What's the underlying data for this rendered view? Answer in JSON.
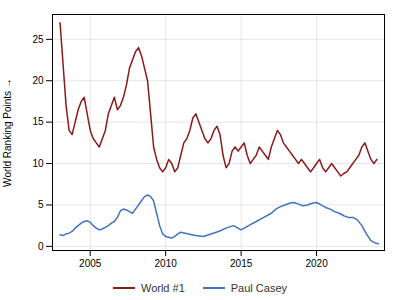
{
  "chart_data": {
    "type": "line",
    "ylabel": "World Ranking Points",
    "xlim": [
      2002.5,
      2024.5
    ],
    "xticks": [
      2005,
      2010,
      2015,
      2020
    ],
    "ylim": [
      -0.5,
      28
    ],
    "yticks": [
      0,
      5,
      10,
      15,
      20,
      25
    ],
    "grid": true,
    "legend": "bottom",
    "series": [
      {
        "name": "World #1",
        "color": "#8b1a1a",
        "x": [
          2003.0,
          2003.2,
          2003.4,
          2003.6,
          2003.8,
          2004.0,
          2004.2,
          2004.4,
          2004.6,
          2004.8,
          2005.0,
          2005.2,
          2005.4,
          2005.6,
          2005.8,
          2006.0,
          2006.2,
          2006.4,
          2006.6,
          2006.8,
          2007.0,
          2007.2,
          2007.4,
          2007.6,
          2007.8,
          2008.0,
          2008.2,
          2008.4,
          2008.6,
          2008.8,
          2009.0,
          2009.2,
          2009.4,
          2009.6,
          2009.8,
          2010.0,
          2010.2,
          2010.4,
          2010.6,
          2010.8,
          2011.0,
          2011.2,
          2011.4,
          2011.6,
          2011.8,
          2012.0,
          2012.2,
          2012.4,
          2012.6,
          2012.8,
          2013.0,
          2013.2,
          2013.4,
          2013.6,
          2013.8,
          2014.0,
          2014.2,
          2014.4,
          2014.6,
          2014.8,
          2015.0,
          2015.2,
          2015.4,
          2015.6,
          2015.8,
          2016.0,
          2016.2,
          2016.4,
          2016.6,
          2016.8,
          2017.0,
          2017.2,
          2017.4,
          2017.6,
          2017.8,
          2018.0,
          2018.2,
          2018.4,
          2018.6,
          2018.8,
          2019.0,
          2019.2,
          2019.4,
          2019.6,
          2019.8,
          2020.0,
          2020.2,
          2020.4,
          2020.6,
          2020.8,
          2021.0,
          2021.2,
          2021.4,
          2021.6,
          2021.8,
          2022.0,
          2022.2,
          2022.4,
          2022.6,
          2022.8,
          2023.0,
          2023.2,
          2023.4,
          2023.6,
          2023.8,
          2024.0
        ],
        "values": [
          27.0,
          22.0,
          17.0,
          14.0,
          13.5,
          15.0,
          16.5,
          17.5,
          18.0,
          16.0,
          14.0,
          13.0,
          12.5,
          12.0,
          13.0,
          14.0,
          16.0,
          17.0,
          18.0,
          16.5,
          17.0,
          18.0,
          19.5,
          21.5,
          22.5,
          23.5,
          24.0,
          23.0,
          21.5,
          20.0,
          16.0,
          12.0,
          10.5,
          9.5,
          9.0,
          9.5,
          10.5,
          10.0,
          9.0,
          9.5,
          11.0,
          12.5,
          13.0,
          14.0,
          15.5,
          16.0,
          15.0,
          14.0,
          13.0,
          12.5,
          13.0,
          14.0,
          14.5,
          13.5,
          11.0,
          9.5,
          10.0,
          11.5,
          12.0,
          11.5,
          12.0,
          12.5,
          11.0,
          10.0,
          10.5,
          11.0,
          12.0,
          11.5,
          11.0,
          10.5,
          12.0,
          13.0,
          14.0,
          13.5,
          12.5,
          12.0,
          11.5,
          11.0,
          10.5,
          10.0,
          10.5,
          10.0,
          9.5,
          9.0,
          9.5,
          10.0,
          10.5,
          9.5,
          9.0,
          9.5,
          10.0,
          9.5,
          9.0,
          8.5,
          8.8,
          9.0,
          9.5,
          10.0,
          10.5,
          11.0,
          12.0,
          12.5,
          11.5,
          10.5,
          10.0,
          10.5
        ]
      },
      {
        "name": "Paul Casey",
        "color": "#4472c4",
        "x": [
          2003.0,
          2003.2,
          2003.4,
          2003.6,
          2003.8,
          2004.0,
          2004.2,
          2004.4,
          2004.6,
          2004.8,
          2005.0,
          2005.2,
          2005.4,
          2005.6,
          2005.8,
          2006.0,
          2006.2,
          2006.4,
          2006.6,
          2006.8,
          2007.0,
          2007.2,
          2007.4,
          2007.6,
          2007.8,
          2008.0,
          2008.2,
          2008.4,
          2008.6,
          2008.8,
          2009.0,
          2009.2,
          2009.4,
          2009.6,
          2009.8,
          2010.0,
          2010.2,
          2010.4,
          2010.6,
          2010.8,
          2011.0,
          2011.5,
          2012.0,
          2012.5,
          2013.0,
          2013.5,
          2014.0,
          2014.5,
          2015.0,
          2015.5,
          2016.0,
          2016.5,
          2017.0,
          2017.3,
          2017.6,
          2017.9,
          2018.2,
          2018.5,
          2018.8,
          2019.1,
          2019.4,
          2019.7,
          2020.0,
          2020.3,
          2020.6,
          2020.9,
          2021.2,
          2021.5,
          2021.8,
          2022.1,
          2022.4,
          2022.7,
          2023.0,
          2023.3,
          2023.6,
          2023.9,
          2024.1
        ],
        "values": [
          1.4,
          1.3,
          1.5,
          1.6,
          1.8,
          2.2,
          2.5,
          2.8,
          3.0,
          3.1,
          2.9,
          2.5,
          2.2,
          2.0,
          2.1,
          2.3,
          2.5,
          2.8,
          3.0,
          3.5,
          4.3,
          4.5,
          4.4,
          4.2,
          4.0,
          4.5,
          5.0,
          5.5,
          6.0,
          6.2,
          6.0,
          5.5,
          4.0,
          2.5,
          1.5,
          1.2,
          1.1,
          1.0,
          1.2,
          1.5,
          1.7,
          1.5,
          1.3,
          1.2,
          1.5,
          1.8,
          2.2,
          2.5,
          2.0,
          2.5,
          3.0,
          3.5,
          4.0,
          4.5,
          4.8,
          5.0,
          5.2,
          5.3,
          5.1,
          4.9,
          5.0,
          5.2,
          5.3,
          5.0,
          4.7,
          4.5,
          4.2,
          4.0,
          3.7,
          3.5,
          3.5,
          3.2,
          2.5,
          1.5,
          0.7,
          0.4,
          0.3
        ]
      }
    ]
  }
}
